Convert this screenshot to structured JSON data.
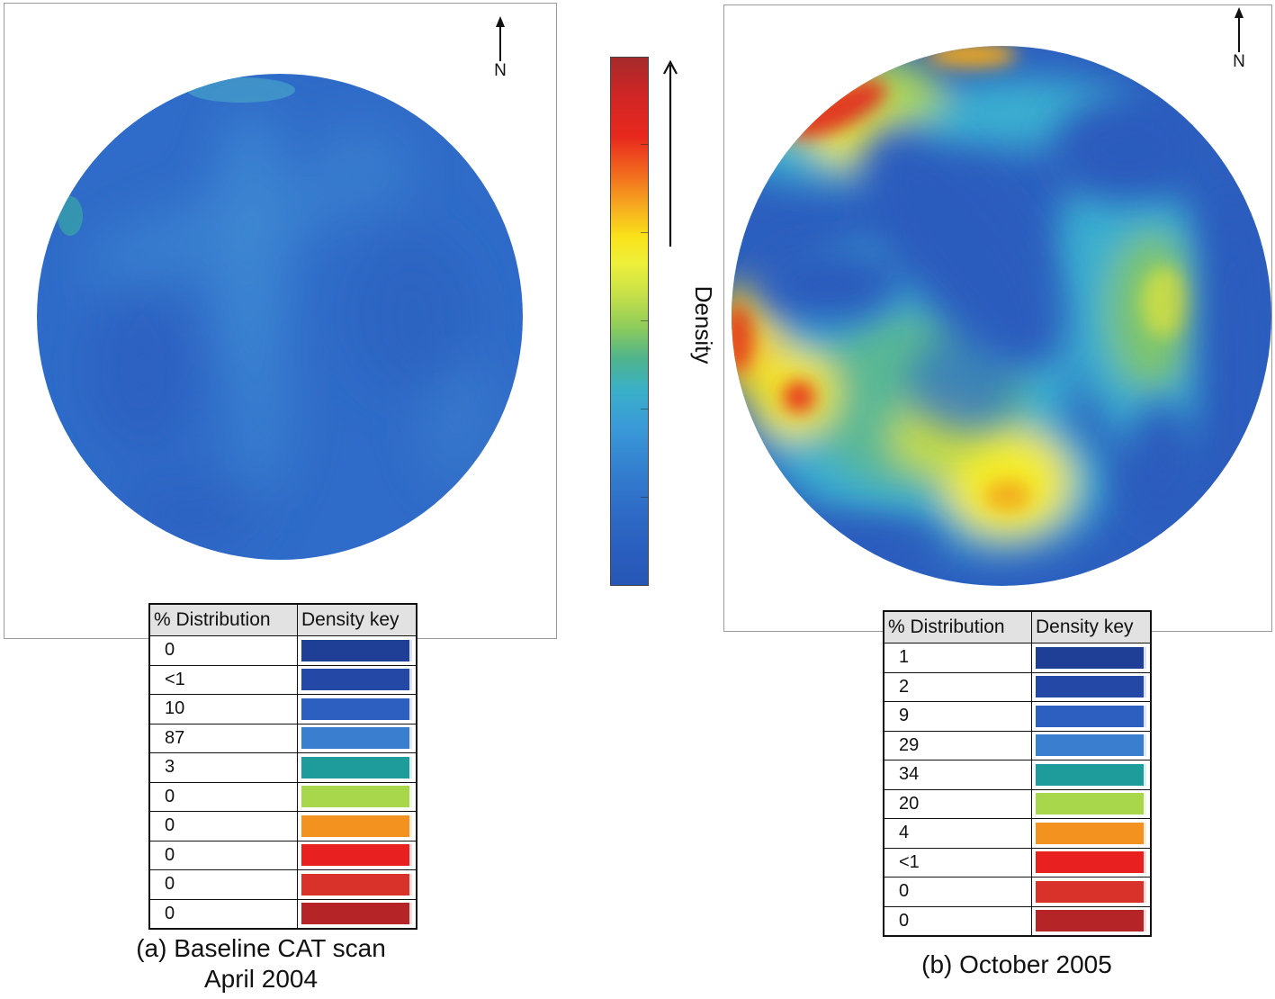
{
  "colors": {
    "key": [
      "#1f3f97",
      "#2448a6",
      "#2c5fbf",
      "#3a7ed0",
      "#1e9b9b",
      "#a9d74c",
      "#f3921e",
      "#e8201f",
      "#d9322b",
      "#b52426"
    ]
  },
  "colorbar": {
    "label": "Density"
  },
  "panels": [
    {
      "north_label": "N",
      "table_headers": [
        "% Distribution",
        "Density key"
      ],
      "distribution": [
        "0",
        "<1",
        "10",
        "87",
        "3",
        "0",
        "0",
        "0",
        "0",
        "0"
      ],
      "caption_lines": [
        "(a) Baseline CAT scan",
        "April 2004"
      ]
    },
    {
      "north_label": "N",
      "table_headers": [
        "% Distribution",
        "Density key"
      ],
      "distribution": [
        "1",
        "2",
        "9",
        "29",
        "34",
        "20",
        "4",
        "<1",
        "0",
        "0"
      ],
      "caption_lines": [
        "(b) October 2005"
      ]
    }
  ]
}
